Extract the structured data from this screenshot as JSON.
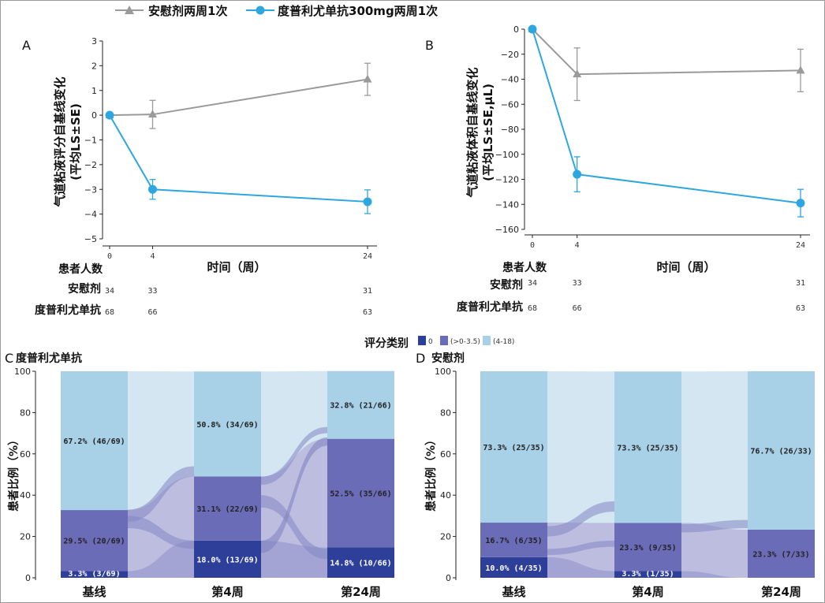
{
  "legend_top": {
    "placebo": "安慰剂两周1次",
    "drug": "度普利尤单抗300mg两周1次"
  },
  "colors": {
    "placebo": "#9a9a9a",
    "drug": "#2ea6e0",
    "cat0": "#2e3f9a",
    "cat1": "#6b6cb8",
    "cat2": "#a8d0e6"
  },
  "panelA": {
    "letter": "A",
    "ylabel_line1": "气道粘液评分自基线变化",
    "ylabel_line2": "(平均LS±SE)",
    "xlabel": "时间（周）"
  },
  "panelB": {
    "letter": "B",
    "ylabel_line1": "气道粘液体积自基线变化",
    "ylabel_line2": "(平均LS±SE,μL)",
    "xlabel": "时间（周）"
  },
  "patients": {
    "header": "患者人数",
    "placebo_label": "安慰剂",
    "drug_label": "度普利尤单抗",
    "placebo_counts": [
      "34",
      "33",
      "31"
    ],
    "drug_counts": [
      "68",
      "66",
      "63"
    ]
  },
  "score_legend": {
    "title": "评分类别",
    "items": [
      "0",
      "(>0-3.5)",
      "(4-18)"
    ]
  },
  "panelC": {
    "letter": "C",
    "title": "度普利尤单抗",
    "ylabel": "患者比例（%）"
  },
  "panelD": {
    "letter": "D",
    "title": "安慰剂",
    "ylabel": "患者比例（%）"
  },
  "chart_data": [
    {
      "type": "line",
      "x": [
        0,
        4,
        24
      ],
      "xticks": [
        "0",
        "4",
        "24"
      ],
      "ylim": [
        -5,
        3
      ],
      "yticks": [
        "3",
        "2",
        "1",
        "0",
        "−1",
        "−2",
        "−3",
        "−4",
        "−5"
      ],
      "series": [
        {
          "name": "安慰剂两周1次",
          "values": [
            0,
            0.03,
            1.45
          ],
          "err": [
            0,
            0.57,
            0.65
          ],
          "marker": "triangle"
        },
        {
          "name": "度普利尤单抗300mg两周1次",
          "values": [
            0,
            -3.0,
            -3.5
          ],
          "err": [
            0,
            0.4,
            0.48
          ],
          "marker": "circle"
        }
      ]
    },
    {
      "type": "line",
      "x": [
        0,
        4,
        24
      ],
      "xticks": [
        "0",
        "4",
        "24"
      ],
      "ylim": [
        -160,
        0
      ],
      "yticks": [
        "0",
        "−20",
        "−40",
        "−60",
        "−80",
        "−100",
        "−120",
        "−140",
        "−160"
      ],
      "series": [
        {
          "name": "安慰剂两周1次",
          "values": [
            0,
            -36,
            -33
          ],
          "err": [
            0,
            21,
            17
          ],
          "marker": "triangle"
        },
        {
          "name": "度普利尤单抗300mg两周1次",
          "values": [
            0,
            -116,
            -139
          ],
          "err": [
            0,
            14,
            11
          ],
          "marker": "circle"
        }
      ]
    },
    {
      "type": "bar",
      "stacked": true,
      "categories": [
        "基线",
        "第4周",
        "第24周"
      ],
      "ylim": [
        0,
        100
      ],
      "yticks": [
        "0",
        "20",
        "40",
        "60",
        "80",
        "100"
      ],
      "series": [
        {
          "name": "0",
          "values": [
            3.3,
            18.0,
            14.8
          ],
          "labels": [
            "3.3% (3/69)",
            "18.0% (13/69)",
            "14.8% (10/66)"
          ]
        },
        {
          "name": "(>0-3.5)",
          "values": [
            29.5,
            31.1,
            52.5
          ],
          "labels": [
            "29.5% (20/69)",
            "31.1% (22/69)",
            "52.5% (35/66)"
          ]
        },
        {
          "name": "(4-18)",
          "values": [
            67.2,
            50.8,
            32.8
          ],
          "labels": [
            "67.2% (46/69)",
            "50.8% (34/69)",
            "32.8% (21/66)"
          ]
        }
      ]
    },
    {
      "type": "bar",
      "stacked": true,
      "categories": [
        "基线",
        "第4周",
        "第24周"
      ],
      "ylim": [
        0,
        100
      ],
      "yticks": [
        "0",
        "20",
        "40",
        "60",
        "80",
        "100"
      ],
      "series": [
        {
          "name": "0",
          "values": [
            10.0,
            3.3,
            0
          ],
          "labels": [
            "10.0% (4/35)",
            "3.3% (1/35)",
            ""
          ]
        },
        {
          "name": "(>0-3.5)",
          "values": [
            16.7,
            23.3,
            23.3
          ],
          "labels": [
            "16.7% (6/35)",
            "23.3% (9/35)",
            "23.3% (7/33)"
          ]
        },
        {
          "name": "(4-18)",
          "values": [
            73.3,
            73.3,
            76.7
          ],
          "labels": [
            "73.3% (25/35)",
            "73.3% (25/35)",
            "76.7% (26/33)"
          ]
        }
      ]
    }
  ]
}
